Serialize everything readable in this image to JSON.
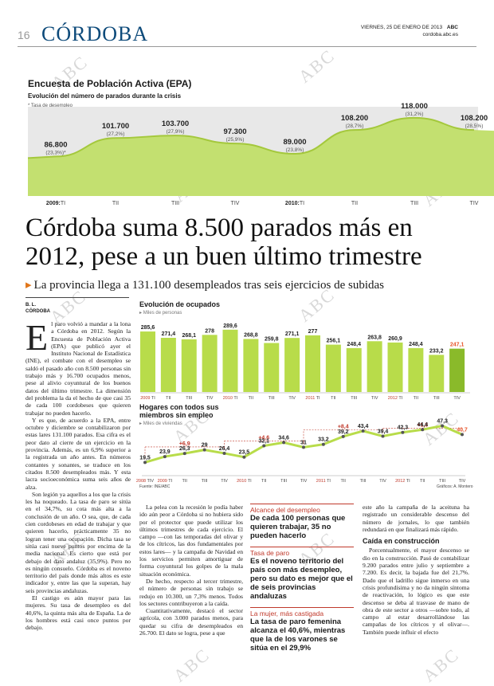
{
  "page": {
    "number": "16",
    "section": "CÓRDOBA",
    "date": "VIERNES, 25 DE ENERO DE 2013",
    "brand": "ABC",
    "url": "cordoba.abc.es",
    "watermark": "ABC"
  },
  "epa": {
    "title": "Encuesta de Población Activa (EPA)",
    "subtitle": "Evolución del número de parados durante la crisis",
    "note": "* Tasa de desempleo",
    "colors": {
      "band": "#e8e8e8",
      "wave": "#c3e070",
      "line": "#b4d84e"
    },
    "points": [
      {
        "value": "86.800",
        "rate": "(23,3%)*"
      },
      {
        "value": "101.700",
        "rate": "(27,2%)"
      },
      {
        "value": "103.700",
        "rate": "(27,9%)"
      },
      {
        "value": "97.300",
        "rate": "(25,9%)"
      },
      {
        "value": "89.000",
        "rate": "(23,8%)"
      },
      {
        "value": "108.200",
        "rate": "(28,7%)"
      },
      {
        "value": "118.000",
        "rate": "(31,2%)"
      },
      {
        "value": "108.200",
        "rate": "(28,5%)"
      }
    ],
    "axis": [
      {
        "year": "2009:",
        "q": "TI"
      },
      {
        "year": "",
        "q": "TII"
      },
      {
        "year": "",
        "q": "TIII"
      },
      {
        "year": "",
        "q": "TIV"
      },
      {
        "year": "2010:",
        "q": "TI"
      },
      {
        "year": "",
        "q": "TII"
      },
      {
        "year": "",
        "q": "TIII"
      },
      {
        "year": "",
        "q": "TIV"
      }
    ]
  },
  "article": {
    "headline": "Córdoba suma 8.500 parados más en 2012, pese a un buen último trimestre",
    "deck": "La provincia llega a 131.100 desempleados tras seis ejercicios de subidas",
    "author": "B. L.",
    "place": "CÓRDOBA",
    "dropcap": "E",
    "col1_first": "l paro volvió a mandar a la lona a Córdoba en 2012. Según la Encuesta de Población Activa (EPA) que publicó ayer el Instituto Nacional de Estadística (INE), el combate con el desempleo se saldó el pasado año con 8.500 personas sin trabajo más y 16.700 ocupados menos, pese al alivio coyuntural de los buenos datos del último trimestre. La dimensión del problema la da el hecho de que casi 35 de cada 100 cordobeses que quieren trabajar no pueden hacerlo.",
    "col1_p2": "Y es que, de acuerdo a la EPA, entre octubre y diciembre se contabilizaron por estas lares 131.100 parados. Esa cifra es el peor dato al cierre de un ejercicio en la provincia. Además, es un 6,9% superior a la registrada un año antes. En números contantes y sonantes, se traduce en los citados 8.500 desempleados más. Y esta lacra socioeconómica suma seis años de alza.",
    "col1_p3": "Son legión ya aquellos a los que la crisis les ha noqueado. La tasa de paro se sitúa en el 34,7%, su cota más alta a la conclusión de un año. O sea, que, de cada cien cordobeses en edad de trabajar y que quieren hacerlo, prácticamente 35 no logran tener una ocupación. Dicha tasa se sitúa casi nueve puntos por encima de la media nacional. Es cierto que está por debajo del dato andaluz (35,9%). Pero no es ningún consuelo. Córdoba es el noveno territorio del país donde más altos es este indicador y, entre las que la superan, hay seis provincias andaluzas.",
    "col1_p4": "El castigo es aún mayor para las mujeres. Su tasa de desempleo es del 40,6%, la quinta más alta de España. La de los hombres está casi once puntos por debajo.",
    "col2_p1": "La pelea con la recesión le podía haber ido aún peor a Córdoba si no hubiera sido por el protector que puede utilizar los últimos trimestres de cada ejercicio. El campo —con las temporadas del olivar y de los cítricos, las dos fundamentales por estos lares— y la campaña de Navidad en los servicios permiten amortiguar de forma coyuntural los golpes de la mala situación económica.",
    "col2_p2": "De hecho, respecto al tercer trimestre, el número de personas sin trabajo se redujo en 10.300, un 7,3% menos. Todos los sectores contribuyeron a la caída.",
    "col2_p3": "Cuantitativamente, destacó el sector agrícola, con 3.000 parados menos, para quedar su cifra de desempleados en 26.700. El dato se logra, pese a que",
    "col4_p1": "este año la campaña de la aceituna ha registrado un considerable descenso del número de jornales, lo que también redundará en que finalizará más rápido.",
    "col4_sub": "Caída en construcción",
    "col4_p2": "Porcentualmente, el mayor descenso se dio en la construcción. Pasó de contabilizar 9.200 parados entre julio y septiembre a 7.200. Es decir, la bajada fue del 21,7%. Dado que el ladrillo sigue inmerso en una crisis profundísima y no da ningún síntoma de reactivación, lo lógico es que este descenso se deba al trasvase de mano de obra de este sector a otros —sobre todo, al campo al estar desarrollándose las campañas de los cítricos y el olivar—. También puede influir el efecto"
  },
  "boxes": [
    {
      "head": "Alcance del desempleo",
      "text": "De cada 100 personas que quieren trabajar, 35 no pueden hacerlo"
    },
    {
      "head": "Tasa de paro",
      "text": "Es el noveno territorio del país con más desempleo, pero su dato es mejor que el de seis provincias andaluzas"
    },
    {
      "head": "La mujer, más castigada",
      "text": "La tasa de paro femenina alcanza el 40,6%, mientras que la de los varones se sitúa en el 29,9%"
    }
  ],
  "chart_data": [
    {
      "type": "bar",
      "title": "Evolución de ocupados",
      "subtitle": "Miles de personas",
      "categories": [
        "2009 TI",
        "TII",
        "TIII",
        "TIV",
        "2010 TI",
        "TII",
        "TIII",
        "TIV",
        "2011 TI",
        "TII",
        "TIII",
        "TIV",
        "2012 TI",
        "TII",
        "TIII",
        "TIV"
      ],
      "values": [
        285.6,
        271.4,
        268.1,
        278,
        289.6,
        268.8,
        259.8,
        271.1,
        277,
        256.1,
        248.4,
        263.8,
        260.9,
        248.4,
        233.2,
        247.1
      ],
      "labels": [
        "285,6",
        "271,4",
        "268,1",
        "278",
        "289,6",
        "268,8",
        "259,8",
        "271,1",
        "277",
        "256,1",
        "248,4",
        "263,8",
        "260,9",
        "248,4",
        "233,2",
        "247,1"
      ],
      "ylim": [
        150,
        300
      ],
      "colors": {
        "bar": "#b8dc4a",
        "last": "#8aba2a",
        "last_label": "#e8552a",
        "axis_year": "#c0392b"
      }
    },
    {
      "type": "line",
      "title": "Hogares con todos sus miembros sin empleo",
      "subtitle": "Miles de viviendas",
      "categories": [
        "2008 TIV",
        "2009 TI",
        "TII",
        "TIII",
        "TIV",
        "2010 TI",
        "TII",
        "TIII",
        "TIV",
        "2011 TI",
        "TII",
        "TIII",
        "TIV",
        "2012 TI",
        "TII",
        "TIII",
        "TIV"
      ],
      "values": [
        19.5,
        23.9,
        26.3,
        29,
        26.4,
        23.5,
        32.1,
        34.6,
        31,
        33.2,
        39.2,
        43.4,
        39.4,
        42.3,
        44.4,
        47.3,
        40.7
      ],
      "labels": [
        "19,5",
        "23,9",
        "26,3",
        "29",
        "26,4",
        "23,5",
        "32,1",
        "34,6",
        "31",
        "33,2",
        "39,2",
        "43,4",
        "39,4",
        "42,3",
        "44,4",
        "47,3",
        "40,7"
      ],
      "annotations": [
        {
          "text": "+6,9",
          "from": 0,
          "to": 4
        },
        {
          "text": "+4,6",
          "from": 4,
          "to": 8
        },
        {
          "text": "+8,4",
          "from": 8,
          "to": 12
        },
        {
          "text": "+1,3",
          "from": 12,
          "to": 16
        }
      ],
      "ylim": [
        10,
        50
      ],
      "colors": {
        "line": "#b8dc4a",
        "point": "#555555",
        "annotation": "#c0392b",
        "last_label": "#e8552a"
      },
      "source": "Fuente: INE/ABC",
      "credit": "Gráficos: A. Montero"
    }
  ]
}
